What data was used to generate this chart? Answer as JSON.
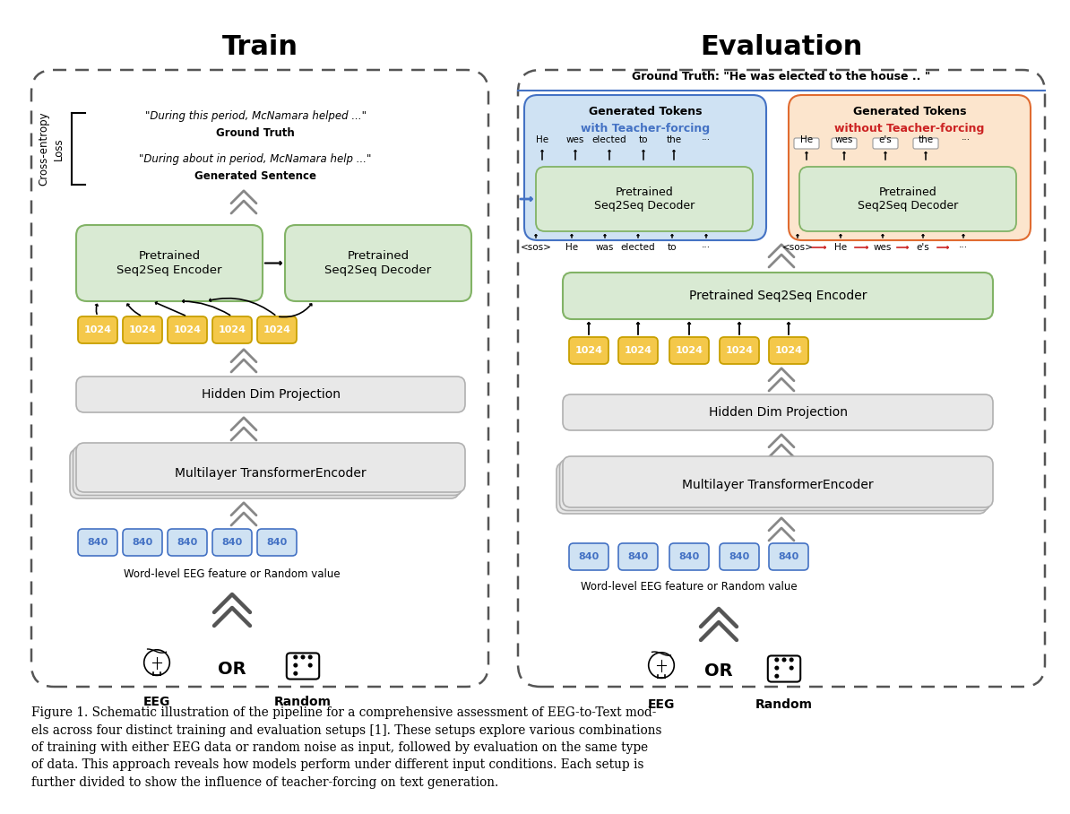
{
  "title_train": "Train",
  "title_eval": "Evaluation",
  "caption_lines": [
    "Figure 1. Schematic illustration of the pipeline for a comprehensive assessment of EEG-to-Text mod-",
    "els across four distinct training and evaluation setups [1]. These setups explore various combinations",
    "of training with either EEG data or random noise as input, followed by evaluation on the same type",
    "of data. This approach reveals how models perform under different input conditions. Each setup is",
    "further divided to show the influence of teacher-forcing on text generation."
  ],
  "color_green_face": "#d9ead3",
  "color_green_edge": "#82b366",
  "color_yellow_face": "#f4c84a",
  "color_yellow_edge": "#c8a000",
  "color_blue_face": "#cfe2f3",
  "color_blue_edge": "#4472c4",
  "color_orange_face": "#fce5cd",
  "color_orange_edge": "#e06b30",
  "color_gray_face": "#e8e8e8",
  "color_gray_edge": "#b0b0b0",
  "color_blue_text": "#4472c4",
  "color_red_text": "#cc2222",
  "color_red_arrow": "#cc2222",
  "color_dash": "#555555",
  "color_chevron": "#888888",
  "color_big_chevron": "#555555"
}
